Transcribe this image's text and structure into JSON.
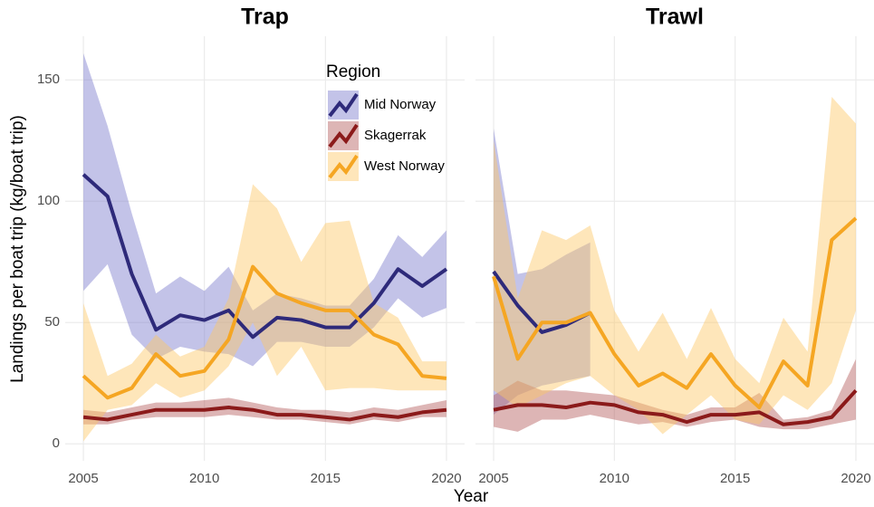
{
  "chart_data": [
    {
      "type": "line",
      "title": "Trap",
      "y_label": "Landings per boat trip (kg/boat trip)",
      "x_label": "Year",
      "legend_title": "Region",
      "x": [
        2005,
        2006,
        2007,
        2008,
        2009,
        2010,
        2011,
        2012,
        2013,
        2014,
        2015,
        2016,
        2017,
        2018,
        2019,
        2020
      ],
      "xlim": [
        2004.25,
        2020.75
      ],
      "xticks": [
        2005,
        2010,
        2015,
        2020
      ],
      "ylim": [
        -7,
        168
      ],
      "yticks": [
        0,
        50,
        100,
        150
      ],
      "grid": true,
      "series": [
        {
          "name": "Mid Norway",
          "color": "#2e2a7a",
          "band_color": "#7b7bcc",
          "values": [
            111,
            102,
            70,
            47,
            53,
            51,
            55,
            44,
            52,
            51,
            48,
            48,
            58,
            72,
            65,
            72
          ],
          "lower": [
            63,
            74,
            45,
            35,
            40,
            38,
            37,
            32,
            42,
            42,
            40,
            40,
            48,
            60,
            52,
            56
          ],
          "upper": [
            161,
            131,
            95,
            62,
            69,
            63,
            73,
            55,
            62,
            60,
            57,
            57,
            68,
            86,
            77,
            88
          ]
        },
        {
          "name": "Skagerrak",
          "color": "#8b1a1a",
          "band_color": "#b35c5c",
          "values": [
            11,
            10,
            12,
            14,
            14,
            14,
            15,
            14,
            12,
            12,
            11,
            10,
            12,
            11,
            13,
            14
          ],
          "lower": [
            8,
            8,
            10,
            11,
            11,
            11,
            12,
            11,
            10,
            10,
            9,
            8,
            10,
            9,
            11,
            11
          ],
          "upper": [
            14,
            13,
            15,
            17,
            17,
            18,
            19,
            17,
            15,
            14,
            14,
            13,
            15,
            14,
            16,
            18
          ]
        },
        {
          "name": "West Norway",
          "color": "#f5a623",
          "band_color": "#fcc865",
          "values": [
            28,
            19,
            23,
            37,
            28,
            30,
            43,
            73,
            62,
            58,
            55,
            55,
            45,
            41,
            28,
            27
          ],
          "lower": [
            1,
            14,
            16,
            25,
            19,
            22,
            32,
            50,
            28,
            40,
            22,
            23,
            23,
            22,
            22,
            22
          ],
          "upper": [
            58,
            28,
            33,
            45,
            36,
            40,
            60,
            107,
            97,
            75,
            91,
            92,
            58,
            52,
            34,
            34
          ]
        }
      ]
    },
    {
      "type": "line",
      "title": "Trawl",
      "x": [
        2005,
        2006,
        2007,
        2008,
        2009,
        2010,
        2011,
        2012,
        2013,
        2014,
        2015,
        2016,
        2017,
        2018,
        2019,
        2020
      ],
      "xlim": [
        2004.25,
        2020.75
      ],
      "xticks": [
        2005,
        2010,
        2015,
        2020
      ],
      "ylim": [
        -7,
        168
      ],
      "grid": true,
      "series": [
        {
          "name": "Mid Norway",
          "color": "#2e2a7a",
          "band_color": "#7b7bcc",
          "values": [
            71,
            57,
            46,
            49,
            54,
            null,
            null,
            null,
            null,
            null,
            null,
            null,
            null,
            null,
            null,
            null
          ],
          "lower": [
            12,
            20,
            24,
            26,
            28,
            null,
            null,
            null,
            null,
            null,
            null,
            null,
            null,
            null,
            null,
            null
          ],
          "upper": [
            130,
            70,
            72,
            78,
            83,
            null,
            null,
            null,
            null,
            null,
            null,
            null,
            null,
            null,
            null,
            null
          ]
        },
        {
          "name": "Skagerrak",
          "color": "#8b1a1a",
          "band_color": "#b35c5c",
          "values": [
            14,
            16,
            16,
            15,
            17,
            16,
            13,
            12,
            9,
            12,
            12,
            13,
            8,
            9,
            11,
            22
          ],
          "lower": [
            7,
            5,
            10,
            10,
            12,
            10,
            8,
            9,
            7,
            9,
            10,
            7,
            6,
            6,
            8,
            10
          ],
          "upper": [
            20,
            26,
            22,
            22,
            21,
            20,
            17,
            14,
            12,
            15,
            15,
            21,
            10,
            11,
            14,
            35
          ]
        },
        {
          "name": "West Norway",
          "color": "#f5a623",
          "band_color": "#fcc865",
          "values": [
            69,
            35,
            50,
            50,
            54,
            37,
            24,
            29,
            23,
            37,
            24,
            15,
            34,
            24,
            84,
            93
          ],
          "lower": [
            22,
            15,
            20,
            25,
            28,
            20,
            14,
            4,
            12,
            20,
            10,
            8,
            20,
            14,
            25,
            55
          ],
          "upper": [
            125,
            60,
            88,
            84,
            90,
            55,
            38,
            54,
            35,
            56,
            35,
            25,
            52,
            38,
            143,
            132
          ]
        }
      ]
    }
  ]
}
